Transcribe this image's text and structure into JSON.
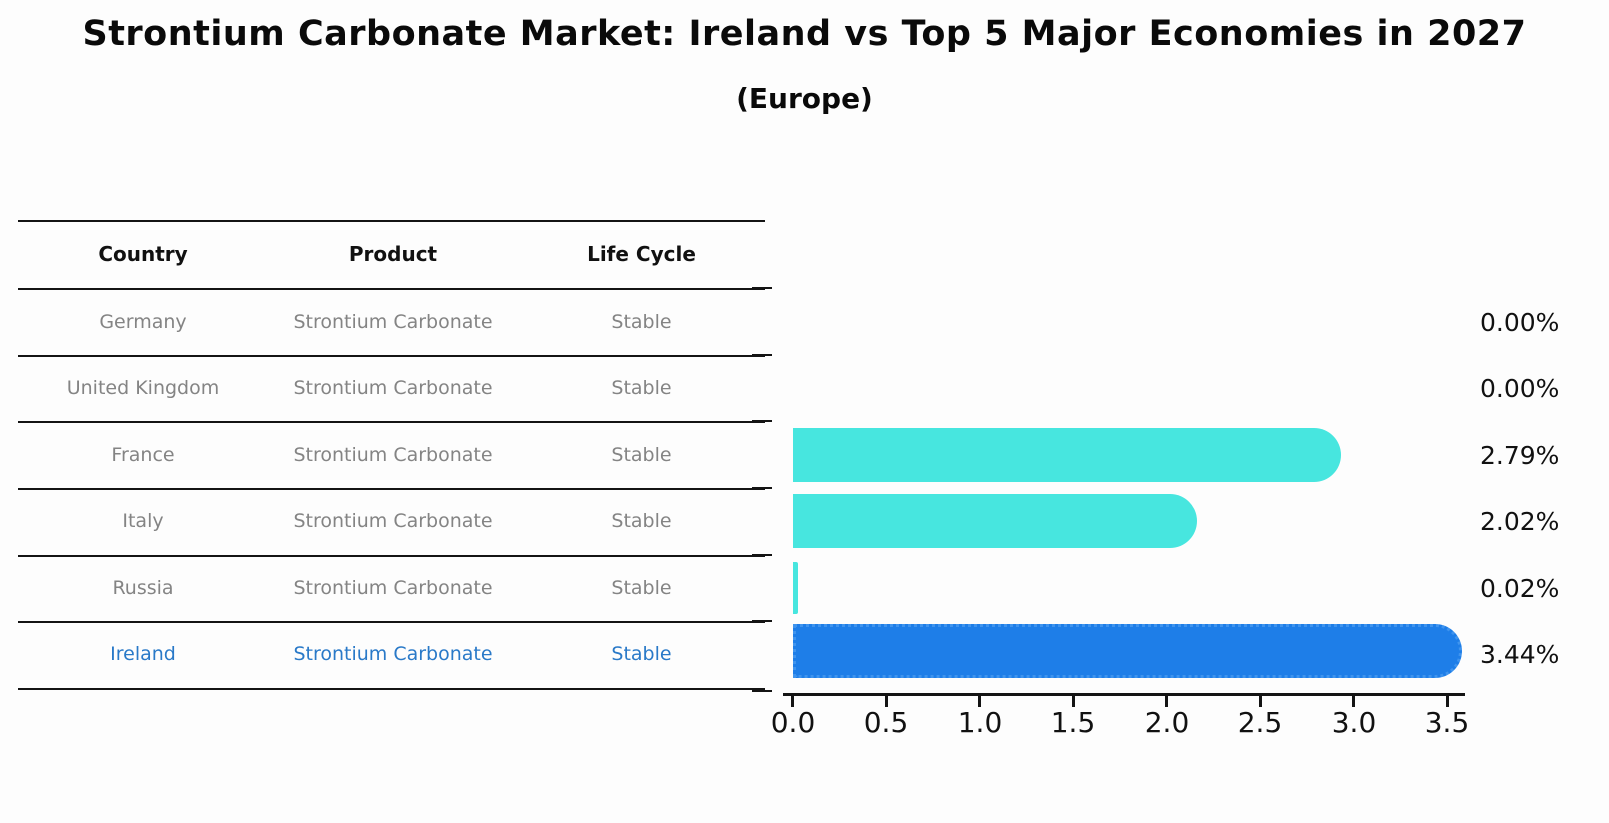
{
  "chart_data": {
    "type": "bar",
    "orientation": "horizontal",
    "title": "Strontium Carbonate Market: Ireland vs Top 5 Major Economies in 2027",
    "subtitle": "(Europe)",
    "categories": [
      "Germany",
      "United Kingdom",
      "France",
      "Italy",
      "Russia",
      "Ireland"
    ],
    "values": [
      0.0,
      0.0,
      2.79,
      2.02,
      0.02,
      3.44
    ],
    "value_labels": [
      "0.00%",
      "0.00%",
      "2.79%",
      "2.02%",
      "0.02%",
      "3.44%"
    ],
    "x_ticks": [
      "0.0",
      "0.5",
      "1.0",
      "1.5",
      "2.0",
      "2.5",
      "3.0",
      "3.5"
    ],
    "xlim": [
      0,
      3.55
    ],
    "grid": false,
    "legend": "none",
    "highlight_index": 5,
    "colors": {
      "default_bar": "#47e6df",
      "highlight_bar": "#1e7ee8",
      "highlight_border": "#3f94ee",
      "highlight_text": "#2979c8",
      "row_text": "#848484",
      "label_text": "#111111"
    }
  },
  "table": {
    "columns": [
      "Country",
      "Product",
      "Life Cycle"
    ],
    "rows": [
      {
        "country": "Germany",
        "product": "Strontium Carbonate",
        "life_cycle": "Stable"
      },
      {
        "country": "United Kingdom",
        "product": "Strontium Carbonate",
        "life_cycle": "Stable"
      },
      {
        "country": "France",
        "product": "Strontium Carbonate",
        "life_cycle": "Stable"
      },
      {
        "country": "Italy",
        "product": "Strontium Carbonate",
        "life_cycle": "Stable"
      },
      {
        "country": "Russia",
        "product": "Strontium Carbonate",
        "life_cycle": "Stable"
      },
      {
        "country": "Ireland",
        "product": "Strontium Carbonate",
        "life_cycle": "Stable"
      }
    ]
  }
}
